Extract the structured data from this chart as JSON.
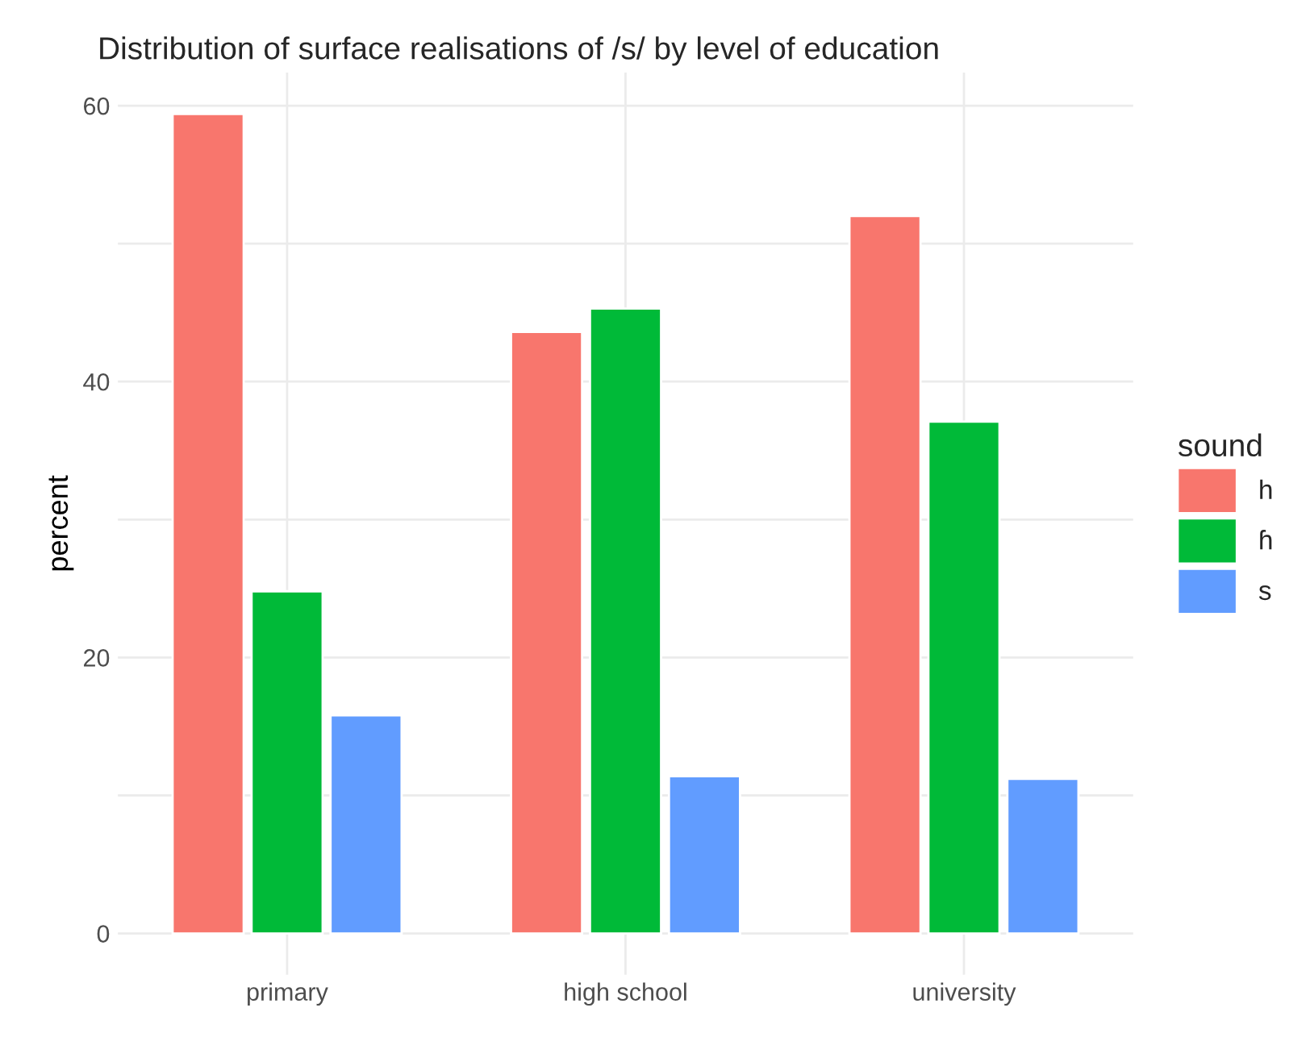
{
  "chart_data": {
    "type": "bar",
    "title": "Distribution of surface realisations of /s/ by level of education",
    "ylabel": "percent",
    "legend_title": "sound",
    "categories": [
      "primary",
      "high school",
      "university"
    ],
    "series": [
      {
        "name": "h",
        "color": "#f8766d",
        "values": [
          59.4,
          43.6,
          52.0
        ]
      },
      {
        "name": "ɦ",
        "color": "#00ba38",
        "values": [
          24.8,
          45.3,
          37.1
        ]
      },
      {
        "name": "s",
        "color": "#619cff",
        "values": [
          15.8,
          11.4,
          11.2
        ]
      }
    ],
    "ylim": [
      -3,
      62.4
    ],
    "yticks": [
      0,
      {
        "value": 10,
        "label": null
      },
      20,
      {
        "value": 30,
        "label": null
      },
      40,
      {
        "value": 50,
        "label": null
      },
      60
    ],
    "grid": true,
    "legend": "right"
  }
}
